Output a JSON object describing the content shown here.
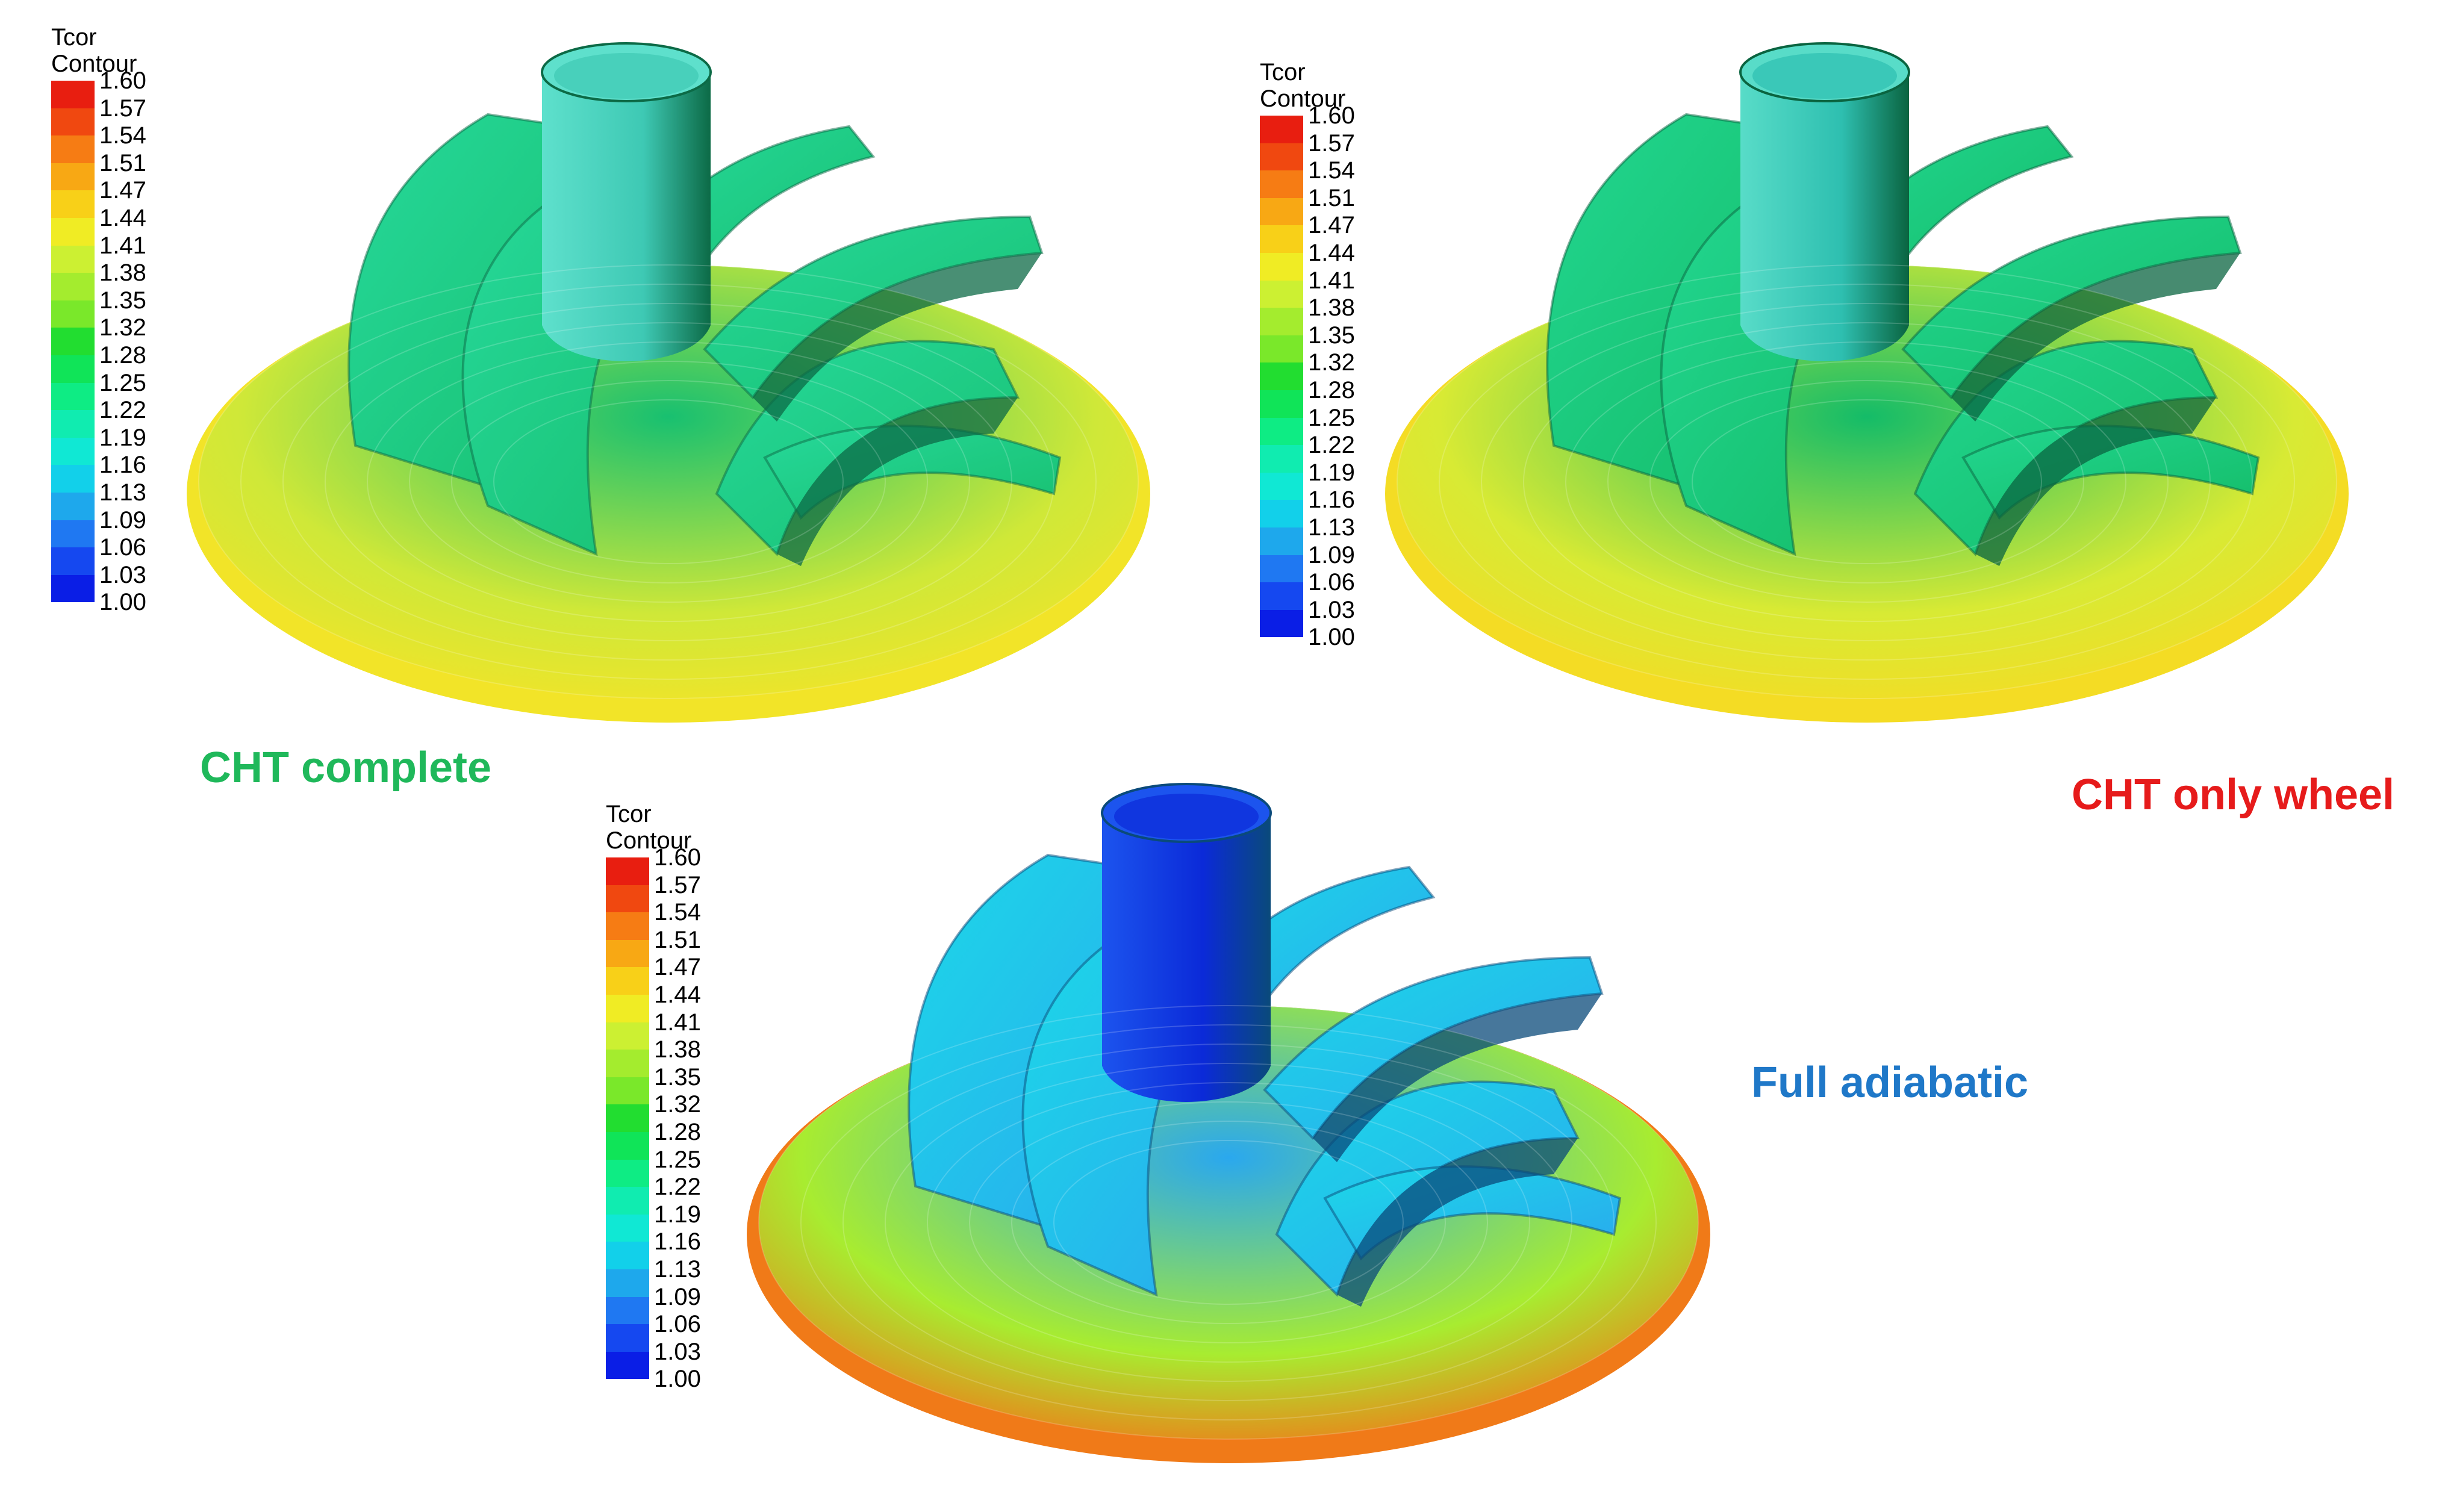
{
  "colors": {
    "scale": [
      "#0a1ee6",
      "#1548f0",
      "#1f78f2",
      "#1ea8ec",
      "#12d0ea",
      "#10e8d4",
      "#10ecb0",
      "#0eec84",
      "#10e458",
      "#22dd30",
      "#4ee42a",
      "#7ae82a",
      "#a4ec2e",
      "#ccf032",
      "#f0ec24",
      "#f8d018",
      "#f8a814",
      "#f67c14",
      "#f04810",
      "#e81e10"
    ],
    "cht_complete_caption": "#1fb85a",
    "cht_only_wheel_caption": "#e61b1b",
    "full_adiabatic_caption": "#1f78c8"
  },
  "panels": [
    {
      "id": "cht-complete",
      "legend": {
        "title": "Tcor",
        "subtitle": "Contour",
        "ticks": [
          "1.60",
          "1.57",
          "1.54",
          "1.51",
          "1.47",
          "1.44",
          "1.41",
          "1.38",
          "1.35",
          "1.32",
          "1.28",
          "1.25",
          "1.22",
          "1.19",
          "1.16",
          "1.13",
          "1.09",
          "1.06",
          "1.03",
          "1.00"
        ]
      },
      "caption": "CHT complete",
      "shading": {
        "hub": "#3ec9b4",
        "hub_top": "#5ee0cc",
        "blade_a": "#26d89a",
        "blade_b": "#18c070",
        "rim": "#cfe838",
        "rim_edge": "#f2e428",
        "dark": "#0c6a46"
      }
    },
    {
      "id": "cht-only-wheel",
      "legend": {
        "title": "Tcor",
        "subtitle": "Contour",
        "ticks": [
          "1.60",
          "1.57",
          "1.54",
          "1.51",
          "1.47",
          "1.44",
          "1.41",
          "1.38",
          "1.35",
          "1.32",
          "1.28",
          "1.25",
          "1.22",
          "1.19",
          "1.16",
          "1.13",
          "1.09",
          "1.06",
          "1.03",
          "1.00"
        ]
      },
      "caption": "CHT only wheel",
      "shading": {
        "hub": "#2ebfb0",
        "hub_top": "#58dcc8",
        "blade_a": "#22d690",
        "blade_b": "#14bc68",
        "rim": "#d8ea34",
        "rim_edge": "#f4dc24",
        "dark": "#0a6440"
      }
    },
    {
      "id": "full-adiabatic",
      "legend": {
        "title": "Tcor",
        "subtitle": "Contour",
        "ticks": [
          "1.60",
          "1.57",
          "1.54",
          "1.51",
          "1.47",
          "1.44",
          "1.41",
          "1.38",
          "1.35",
          "1.32",
          "1.28",
          "1.25",
          "1.22",
          "1.19",
          "1.16",
          "1.13",
          "1.09",
          "1.06",
          "1.03",
          "1.00"
        ]
      },
      "caption": "Full adiabatic",
      "shading": {
        "hub": "#0b2ad8",
        "hub_top": "#1c54ee",
        "blade_a": "#1cd8e8",
        "blade_b": "#2aa8ee",
        "rim": "#a8ec30",
        "rim_edge": "#f07a18",
        "dark": "#0a4a7a"
      }
    }
  ]
}
